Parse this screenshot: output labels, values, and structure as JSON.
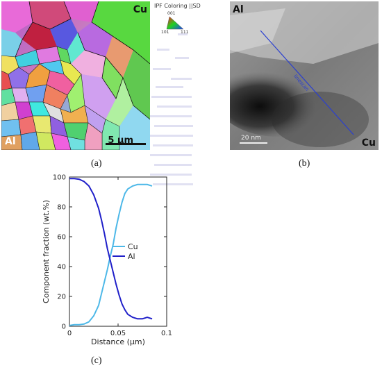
{
  "panel_a": {
    "label_cu": "Cu",
    "label_al": "Al",
    "scale_bar": "5 µm",
    "legend": {
      "title": "IPF Coloring ||SD",
      "pole_001": "001",
      "pole_101": "101",
      "pole_111": "111"
    },
    "caption": "(a)"
  },
  "panel_b": {
    "label_al": "Al",
    "label_cu": "Cu",
    "scale_bar": "20 nm",
    "line_label": "linescan",
    "caption": "(b)"
  },
  "panel_c": {
    "caption": "(c)"
  },
  "colors": {
    "cu": "#4db8e8",
    "al": "#1f1fc9",
    "scan_line": "#2a3fd0"
  },
  "chart_data": {
    "type": "line",
    "xlabel": "Distance (µm)",
    "ylabel": "Component fraction (wt.%)",
    "xlim": [
      0,
      0.1
    ],
    "ylim": [
      0,
      100
    ],
    "xticks": [
      0,
      0.05,
      0.1
    ],
    "xtick_labels": [
      "0",
      "0.05",
      "0.1"
    ],
    "yticks": [
      0,
      20,
      40,
      60,
      80,
      100
    ],
    "legend_position": "right-middle",
    "series": [
      {
        "name": "Cu",
        "color": "#4db8e8",
        "x": [
          0,
          0.005,
          0.01,
          0.015,
          0.02,
          0.025,
          0.03,
          0.033,
          0.036,
          0.039,
          0.042,
          0.045,
          0.048,
          0.051,
          0.054,
          0.057,
          0.06,
          0.065,
          0.07,
          0.075,
          0.08,
          0.085
        ],
        "y": [
          0.5,
          1,
          1,
          1.5,
          3,
          7,
          14,
          22,
          30,
          38,
          47,
          55,
          66,
          75,
          83,
          89,
          92,
          94,
          95,
          95,
          95,
          94
        ]
      },
      {
        "name": "Al",
        "color": "#1f1fc9",
        "x": [
          0,
          0.005,
          0.01,
          0.015,
          0.02,
          0.025,
          0.03,
          0.033,
          0.036,
          0.039,
          0.042,
          0.045,
          0.048,
          0.051,
          0.054,
          0.057,
          0.06,
          0.065,
          0.07,
          0.075,
          0.08,
          0.085
        ],
        "y": [
          99,
          99,
          98.5,
          97,
          94,
          88,
          79,
          71,
          62,
          52,
          44,
          36,
          28,
          21,
          15,
          11,
          8,
          6,
          5,
          5,
          6,
          5
        ]
      }
    ]
  }
}
